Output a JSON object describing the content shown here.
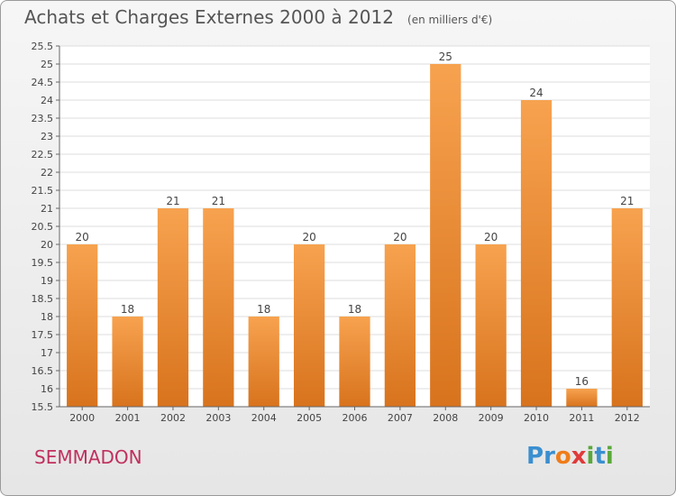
{
  "header": {
    "title": "Achats et Charges Externes 2000 à 2012",
    "subtitle": "(en milliers d'€)"
  },
  "footer": {
    "commune": "SEMMADON",
    "logo_letters": [
      {
        "text": "P",
        "color": "#3a8fd0"
      },
      {
        "text": "r",
        "color": "#3a8fd0"
      },
      {
        "text": "o",
        "color": "#ef7d1a"
      },
      {
        "text": "x",
        "color": "#e03a3a"
      },
      {
        "text": "i",
        "color": "#5aa83a"
      },
      {
        "text": "t",
        "color": "#3a8fd0"
      },
      {
        "text": "i",
        "color": "#5aa83a"
      }
    ]
  },
  "chart_data": {
    "type": "bar",
    "categories": [
      "2000",
      "2001",
      "2002",
      "2003",
      "2004",
      "2005",
      "2006",
      "2007",
      "2008",
      "2009",
      "2010",
      "2011",
      "2012"
    ],
    "values": [
      20,
      18,
      21,
      21,
      18,
      20,
      18,
      20,
      25,
      20,
      24,
      16,
      21
    ],
    "data_labels": [
      "20",
      "18",
      "21",
      "21",
      "18",
      "20",
      "18",
      "20",
      "25",
      "20",
      "24",
      "16",
      "21"
    ],
    "ylim": [
      15.5,
      25.5
    ],
    "yticks": [
      "15.5",
      "16",
      "16.5",
      "17",
      "17.5",
      "18",
      "18.5",
      "19",
      "19.5",
      "20",
      "20.5",
      "21",
      "21.5",
      "22",
      "22.5",
      "23",
      "23.5",
      "24",
      "24.5",
      "25",
      "25.5"
    ],
    "xlabel": "",
    "ylabel": "",
    "grid": true,
    "bar_color_top": "#f7a24f",
    "bar_color_bottom": "#d8731d"
  }
}
